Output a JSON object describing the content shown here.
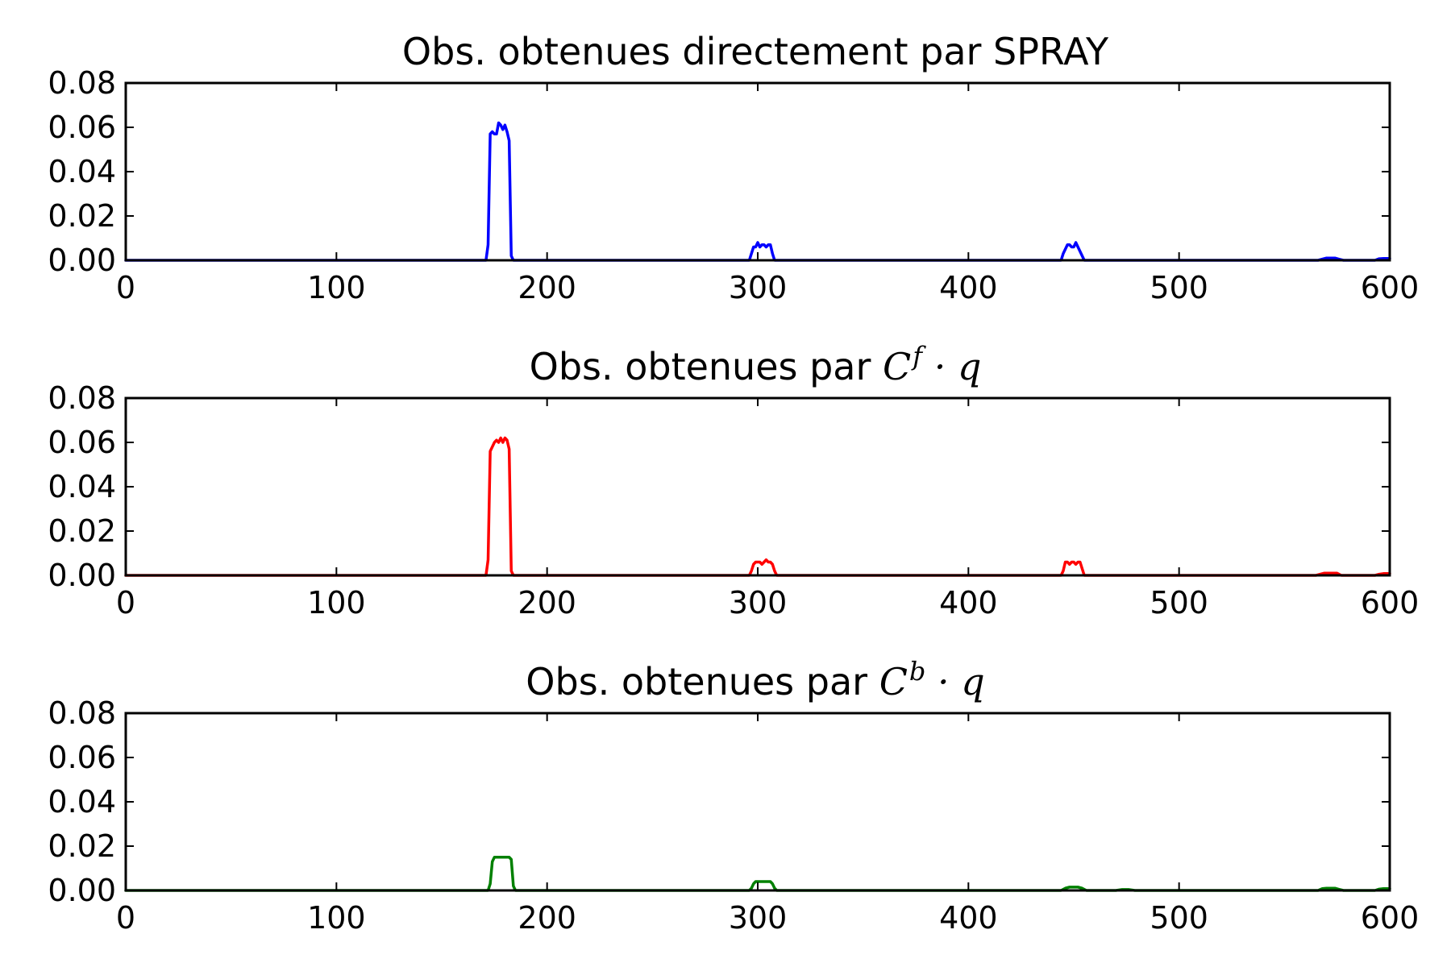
{
  "chart_data": [
    {
      "type": "line",
      "title": "Obs. obtenues directement par SPRAY",
      "color": "#0000ff",
      "xlim": [
        0,
        600
      ],
      "ylim": [
        0,
        0.08
      ],
      "xticks": [
        "0",
        "100",
        "200",
        "300",
        "400",
        "500",
        "600"
      ],
      "yticks": [
        "0.00",
        "0.02",
        "0.04",
        "0.06",
        "0.08"
      ],
      "series": [
        {
          "x": [
            0,
            171,
            172,
            173,
            174,
            175,
            176,
            177,
            178,
            179,
            180,
            181,
            182,
            183,
            184,
            296,
            297,
            298,
            299,
            300,
            301,
            302,
            303,
            304,
            305,
            306,
            307,
            308,
            444,
            445,
            446,
            447,
            448,
            449,
            450,
            451,
            452,
            453,
            454,
            455,
            566,
            568,
            570,
            572,
            574,
            576,
            578,
            593,
            595,
            597,
            600
          ],
          "y": [
            0,
            0,
            0.007,
            0.057,
            0.058,
            0.057,
            0.057,
            0.062,
            0.061,
            0.059,
            0.061,
            0.058,
            0.054,
            0.002,
            0,
            0,
            0.003,
            0.006,
            0.006,
            0.008,
            0.006,
            0.007,
            0.007,
            0.006,
            0.007,
            0.007,
            0.003,
            0,
            0,
            0.003,
            0.005,
            0.007,
            0.007,
            0.006,
            0.006,
            0.008,
            0.006,
            0.004,
            0.002,
            0,
            0,
            0.0005,
            0.001,
            0.001,
            0.001,
            0.0005,
            0,
            0,
            0.0007,
            0.0008,
            0.0008
          ]
        }
      ]
    },
    {
      "type": "line",
      "title_text": "Obs. obtenues par ",
      "title_math_base": "C",
      "title_math_sup": "f",
      "title_math_tail": " · q",
      "color": "#ff0000",
      "xlim": [
        0,
        600
      ],
      "ylim": [
        0,
        0.08
      ],
      "xticks": [
        "0",
        "100",
        "200",
        "300",
        "400",
        "500",
        "600"
      ],
      "yticks": [
        "0.00",
        "0.02",
        "0.04",
        "0.06",
        "0.08"
      ],
      "series": [
        {
          "x": [
            0,
            171,
            172,
            173,
            174,
            175,
            176,
            177,
            178,
            179,
            180,
            181,
            182,
            183,
            184,
            296,
            297,
            298,
            299,
            300,
            301,
            302,
            303,
            304,
            305,
            306,
            307,
            308,
            309,
            444,
            445,
            446,
            447,
            448,
            449,
            450,
            451,
            452,
            453,
            454,
            455,
            565,
            567,
            569,
            571,
            573,
            575,
            577,
            593,
            595,
            597,
            600
          ],
          "y": [
            0,
            0,
            0.007,
            0.056,
            0.058,
            0.06,
            0.061,
            0.06,
            0.062,
            0.06,
            0.062,
            0.061,
            0.057,
            0.002,
            0,
            0,
            0.002,
            0.005,
            0.006,
            0.006,
            0.006,
            0.005,
            0.006,
            0.007,
            0.006,
            0.006,
            0.005,
            0.002,
            0,
            0,
            0.002,
            0.006,
            0.006,
            0.005,
            0.006,
            0.006,
            0.005,
            0.006,
            0.006,
            0.003,
            0,
            0,
            0.0005,
            0.001,
            0.001,
            0.001,
            0.001,
            0,
            0,
            0.0005,
            0.0008,
            0.0008
          ]
        }
      ]
    },
    {
      "type": "line",
      "title_text": "Obs. obtenues par ",
      "title_math_base": "C",
      "title_math_sup": "b",
      "title_math_tail": " · q",
      "color": "#008000",
      "xlim": [
        0,
        600
      ],
      "ylim": [
        0,
        0.08
      ],
      "xticks": [
        "0",
        "100",
        "200",
        "300",
        "400",
        "500",
        "600"
      ],
      "yticks": [
        "0.00",
        "0.02",
        "0.04",
        "0.06",
        "0.08"
      ],
      "series": [
        {
          "x": [
            0,
            172,
            173,
            174,
            175,
            176,
            177,
            178,
            179,
            180,
            181,
            182,
            183,
            184,
            185,
            296,
            297,
            298,
            299,
            300,
            301,
            302,
            303,
            304,
            305,
            306,
            307,
            308,
            309,
            444,
            446,
            448,
            450,
            452,
            454,
            456,
            470,
            473,
            476,
            479,
            566,
            568,
            570,
            572,
            574,
            576,
            578,
            593,
            595,
            597,
            600
          ],
          "y": [
            0,
            0,
            0.003,
            0.013,
            0.015,
            0.015,
            0.015,
            0.015,
            0.015,
            0.015,
            0.015,
            0.015,
            0.014,
            0.002,
            0,
            0,
            0.001,
            0.003,
            0.004,
            0.004,
            0.004,
            0.004,
            0.004,
            0.004,
            0.004,
            0.004,
            0.003,
            0.001,
            0,
            0,
            0.001,
            0.0015,
            0.0015,
            0.0015,
            0.001,
            0,
            0,
            0.0004,
            0.0004,
            0,
            0,
            0.0008,
            0.001,
            0.001,
            0.001,
            0.0005,
            0,
            0,
            0.0006,
            0.0008,
            0.0008
          ]
        }
      ]
    }
  ]
}
